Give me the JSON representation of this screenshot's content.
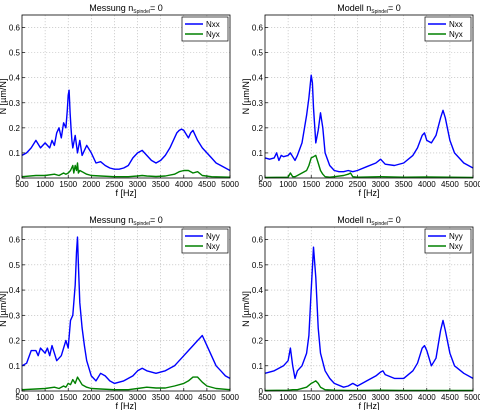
{
  "colors": {
    "blue": "#0000ff",
    "green": "#008000"
  },
  "chart_data": [
    {
      "type": "line",
      "title": {
        "main": "Messung n",
        "sub": "Spindel",
        "suffix": "= 0"
      },
      "xlabel": "f [Hz]",
      "ylabel": "N [µm/N]",
      "xlim": [
        500,
        5000
      ],
      "ylim": [
        0,
        0.65
      ],
      "xticks": [
        "500",
        "1000",
        "1500",
        "2000",
        "2500",
        "3000",
        "3500",
        "4000",
        "4500",
        "5000"
      ],
      "yticks": [
        "0",
        "0.1",
        "0.2",
        "0.3",
        "0.4",
        "0.5",
        "0.6"
      ],
      "grid": true,
      "legend": "top-right",
      "series": [
        {
          "name": "Nxx",
          "color": "#0000ff",
          "x": [
            500,
            600,
            700,
            800,
            900,
            1000,
            1100,
            1150,
            1200,
            1250,
            1300,
            1350,
            1400,
            1450,
            1480,
            1500,
            1520,
            1540,
            1560,
            1580,
            1600,
            1650,
            1700,
            1750,
            1800,
            1900,
            2000,
            2100,
            2200,
            2300,
            2400,
            2500,
            2600,
            2700,
            2800,
            2900,
            3000,
            3100,
            3200,
            3300,
            3400,
            3500,
            3600,
            3700,
            3800,
            3850,
            3900,
            3950,
            4000,
            4100,
            4150,
            4200,
            4250,
            4300,
            4400,
            4500,
            4600,
            4700,
            4800,
            4900,
            5000
          ],
          "y": [
            0.09,
            0.1,
            0.12,
            0.15,
            0.12,
            0.14,
            0.12,
            0.15,
            0.13,
            0.18,
            0.2,
            0.16,
            0.22,
            0.2,
            0.27,
            0.33,
            0.35,
            0.26,
            0.2,
            0.15,
            0.12,
            0.17,
            0.1,
            0.15,
            0.09,
            0.13,
            0.1,
            0.06,
            0.065,
            0.05,
            0.04,
            0.035,
            0.035,
            0.04,
            0.05,
            0.08,
            0.1,
            0.11,
            0.09,
            0.07,
            0.06,
            0.07,
            0.09,
            0.12,
            0.16,
            0.18,
            0.19,
            0.195,
            0.19,
            0.16,
            0.18,
            0.19,
            0.17,
            0.15,
            0.12,
            0.1,
            0.08,
            0.06,
            0.05,
            0.04,
            0.03
          ]
        },
        {
          "name": "Nyx",
          "color": "#008000",
          "x": [
            500,
            800,
            1000,
            1200,
            1300,
            1400,
            1450,
            1500,
            1550,
            1600,
            1620,
            1650,
            1680,
            1700,
            1720,
            1750,
            1800,
            1850,
            1900,
            2000,
            2200,
            2500,
            2800,
            3000,
            3100,
            3200,
            3400,
            3600,
            3800,
            3900,
            4000,
            4100,
            4200,
            4300,
            4400,
            4600,
            5000
          ],
          "y": [
            0.005,
            0.01,
            0.01,
            0.015,
            0.01,
            0.02,
            0.015,
            0.02,
            0.03,
            0.05,
            0.02,
            0.05,
            0.03,
            0.06,
            0.02,
            0.03,
            0.025,
            0.02,
            0.015,
            0.01,
            0.008,
            0.005,
            0.005,
            0.008,
            0.01,
            0.008,
            0.006,
            0.008,
            0.015,
            0.025,
            0.03,
            0.03,
            0.02,
            0.025,
            0.01,
            0.005,
            0.003
          ]
        }
      ]
    },
    {
      "type": "line",
      "title": {
        "main": "Modell n",
        "sub": "Spindel",
        "suffix": "= 0"
      },
      "xlabel": "f [Hz]",
      "ylabel": "N [µm/N]",
      "xlim": [
        500,
        5000
      ],
      "ylim": [
        0,
        0.65
      ],
      "xticks": [
        "500",
        "1000",
        "1500",
        "2000",
        "2500",
        "3000",
        "3500",
        "4000",
        "4500",
        "5000"
      ],
      "yticks": [
        "0",
        "0.1",
        "0.2",
        "0.3",
        "0.4",
        "0.5",
        "0.6"
      ],
      "grid": true,
      "legend": "top-right",
      "series": [
        {
          "name": "Nxx",
          "color": "#0000ff",
          "x": [
            500,
            600,
            700,
            750,
            800,
            850,
            900,
            1000,
            1050,
            1100,
            1150,
            1200,
            1300,
            1400,
            1450,
            1500,
            1525,
            1550,
            1600,
            1650,
            1700,
            1750,
            1800,
            1900,
            2000,
            2100,
            2200,
            2300,
            2400,
            2500,
            2700,
            2900,
            3000,
            3050,
            3100,
            3300,
            3500,
            3700,
            3800,
            3900,
            3950,
            4000,
            4100,
            4200,
            4300,
            4350,
            4400,
            4500,
            4600,
            4800,
            5000
          ],
          "y": [
            0.08,
            0.075,
            0.08,
            0.1,
            0.07,
            0.09,
            0.085,
            0.09,
            0.1,
            0.085,
            0.07,
            0.09,
            0.14,
            0.25,
            0.32,
            0.41,
            0.38,
            0.28,
            0.14,
            0.19,
            0.26,
            0.2,
            0.1,
            0.05,
            0.03,
            0.025,
            0.025,
            0.03,
            0.025,
            0.03,
            0.045,
            0.06,
            0.075,
            0.065,
            0.055,
            0.05,
            0.06,
            0.09,
            0.12,
            0.17,
            0.18,
            0.15,
            0.14,
            0.17,
            0.24,
            0.27,
            0.24,
            0.15,
            0.1,
            0.06,
            0.04
          ]
        },
        {
          "name": "Nyx",
          "color": "#008000",
          "x": [
            500,
            1000,
            1050,
            1100,
            1150,
            1200,
            1400,
            1450,
            1500,
            1550,
            1600,
            1650,
            1700,
            1750,
            1800,
            1900,
            2000,
            2200,
            2300,
            2350,
            2400,
            2500,
            3000,
            3500,
            4000,
            4500,
            5000
          ],
          "y": [
            0.002,
            0.003,
            0.02,
            0.005,
            0.005,
            0.01,
            0.03,
            0.05,
            0.08,
            0.085,
            0.09,
            0.06,
            0.03,
            0.015,
            0.005,
            0.003,
            0.005,
            0.01,
            0.015,
            0.02,
            0.005,
            0.003,
            0.005,
            0.003,
            0.004,
            0.003,
            0.002
          ]
        }
      ]
    },
    {
      "type": "line",
      "title": {
        "main": "Messung n",
        "sub": "Spindel",
        "suffix": "= 0"
      },
      "xlabel": "f [Hz]",
      "ylabel": "N [µm/N]",
      "xlim": [
        500,
        5000
      ],
      "ylim": [
        0,
        0.65
      ],
      "xticks": [
        "500",
        "1000",
        "1500",
        "2000",
        "2500",
        "3000",
        "3500",
        "4000",
        "4500",
        "5000"
      ],
      "yticks": [
        "0",
        "0.1",
        "0.2",
        "0.3",
        "0.4",
        "0.5",
        "0.6"
      ],
      "grid": true,
      "legend": "top-right",
      "series": [
        {
          "name": "Nyy",
          "color": "#0000ff",
          "x": [
            500,
            600,
            700,
            800,
            850,
            900,
            950,
            1000,
            1050,
            1100,
            1150,
            1200,
            1250,
            1300,
            1350,
            1400,
            1450,
            1500,
            1550,
            1600,
            1650,
            1680,
            1700,
            1720,
            1750,
            1800,
            1850,
            1900,
            2000,
            2100,
            2200,
            2300,
            2400,
            2500,
            2700,
            2900,
            3000,
            3100,
            3200,
            3400,
            3600,
            3800,
            4000,
            4100,
            4200,
            4300,
            4350,
            4400,
            4500,
            4600,
            4700,
            4800,
            4900,
            5000
          ],
          "y": [
            0.1,
            0.11,
            0.16,
            0.16,
            0.14,
            0.17,
            0.16,
            0.15,
            0.17,
            0.14,
            0.18,
            0.15,
            0.12,
            0.13,
            0.14,
            0.17,
            0.2,
            0.17,
            0.28,
            0.3,
            0.42,
            0.55,
            0.61,
            0.5,
            0.35,
            0.25,
            0.18,
            0.12,
            0.06,
            0.04,
            0.07,
            0.06,
            0.04,
            0.03,
            0.04,
            0.06,
            0.08,
            0.09,
            0.08,
            0.07,
            0.08,
            0.1,
            0.14,
            0.16,
            0.18,
            0.2,
            0.21,
            0.22,
            0.18,
            0.14,
            0.1,
            0.08,
            0.06,
            0.05
          ]
        },
        {
          "name": "Nxy",
          "color": "#008000",
          "x": [
            500,
            800,
            1000,
            1200,
            1300,
            1400,
            1450,
            1500,
            1550,
            1600,
            1650,
            1700,
            1750,
            1800,
            1900,
            2000,
            2200,
            2500,
            2800,
            3000,
            3200,
            3400,
            3600,
            3800,
            4000,
            4100,
            4200,
            4300,
            4400,
            4500,
            4700,
            5000
          ],
          "y": [
            0.005,
            0.008,
            0.01,
            0.015,
            0.01,
            0.02,
            0.015,
            0.03,
            0.025,
            0.045,
            0.03,
            0.055,
            0.04,
            0.025,
            0.015,
            0.01,
            0.008,
            0.005,
            0.005,
            0.01,
            0.015,
            0.012,
            0.012,
            0.02,
            0.03,
            0.04,
            0.055,
            0.055,
            0.035,
            0.02,
            0.01,
            0.005
          ]
        }
      ]
    },
    {
      "type": "line",
      "title": {
        "main": "Modell n",
        "sub": "Spindel",
        "suffix": "= 0"
      },
      "xlabel": "f [Hz]",
      "ylabel": "N [µm/N]",
      "xlim": [
        500,
        5000
      ],
      "ylim": [
        0,
        0.65
      ],
      "xticks": [
        "500",
        "1000",
        "1500",
        "2000",
        "2500",
        "3000",
        "3500",
        "4000",
        "4500",
        "5000"
      ],
      "yticks": [
        "0",
        "0.1",
        "0.2",
        "0.3",
        "0.4",
        "0.5",
        "0.6"
      ],
      "grid": true,
      "legend": "top-right",
      "series": [
        {
          "name": "Nyy",
          "color": "#0000ff",
          "x": [
            500,
            600,
            700,
            800,
            900,
            1000,
            1050,
            1100,
            1150,
            1200,
            1300,
            1400,
            1450,
            1500,
            1550,
            1600,
            1650,
            1700,
            1800,
            1900,
            2000,
            2200,
            2300,
            2400,
            2500,
            2700,
            2900,
            3000,
            3050,
            3100,
            3300,
            3500,
            3700,
            3800,
            3900,
            3950,
            4000,
            4100,
            4200,
            4300,
            4350,
            4400,
            4500,
            4600,
            4800,
            5000
          ],
          "y": [
            0.07,
            0.075,
            0.08,
            0.09,
            0.1,
            0.12,
            0.17,
            0.1,
            0.05,
            0.08,
            0.1,
            0.15,
            0.22,
            0.4,
            0.57,
            0.45,
            0.25,
            0.15,
            0.08,
            0.05,
            0.03,
            0.015,
            0.02,
            0.03,
            0.02,
            0.04,
            0.06,
            0.075,
            0.08,
            0.065,
            0.05,
            0.05,
            0.08,
            0.11,
            0.17,
            0.18,
            0.16,
            0.1,
            0.13,
            0.24,
            0.28,
            0.24,
            0.15,
            0.1,
            0.07,
            0.05
          ]
        },
        {
          "name": "Nxy",
          "color": "#008000",
          "x": [
            500,
            1000,
            1100,
            1200,
            1400,
            1500,
            1550,
            1600,
            1650,
            1700,
            1800,
            2000,
            2300,
            2500,
            3000,
            3500,
            4000,
            4500,
            5000
          ],
          "y": [
            0.002,
            0.003,
            0.005,
            0.005,
            0.015,
            0.03,
            0.035,
            0.04,
            0.03,
            0.015,
            0.005,
            0.003,
            0.002,
            0.002,
            0.003,
            0.002,
            0.002,
            0.002,
            0.002
          ]
        }
      ]
    }
  ]
}
